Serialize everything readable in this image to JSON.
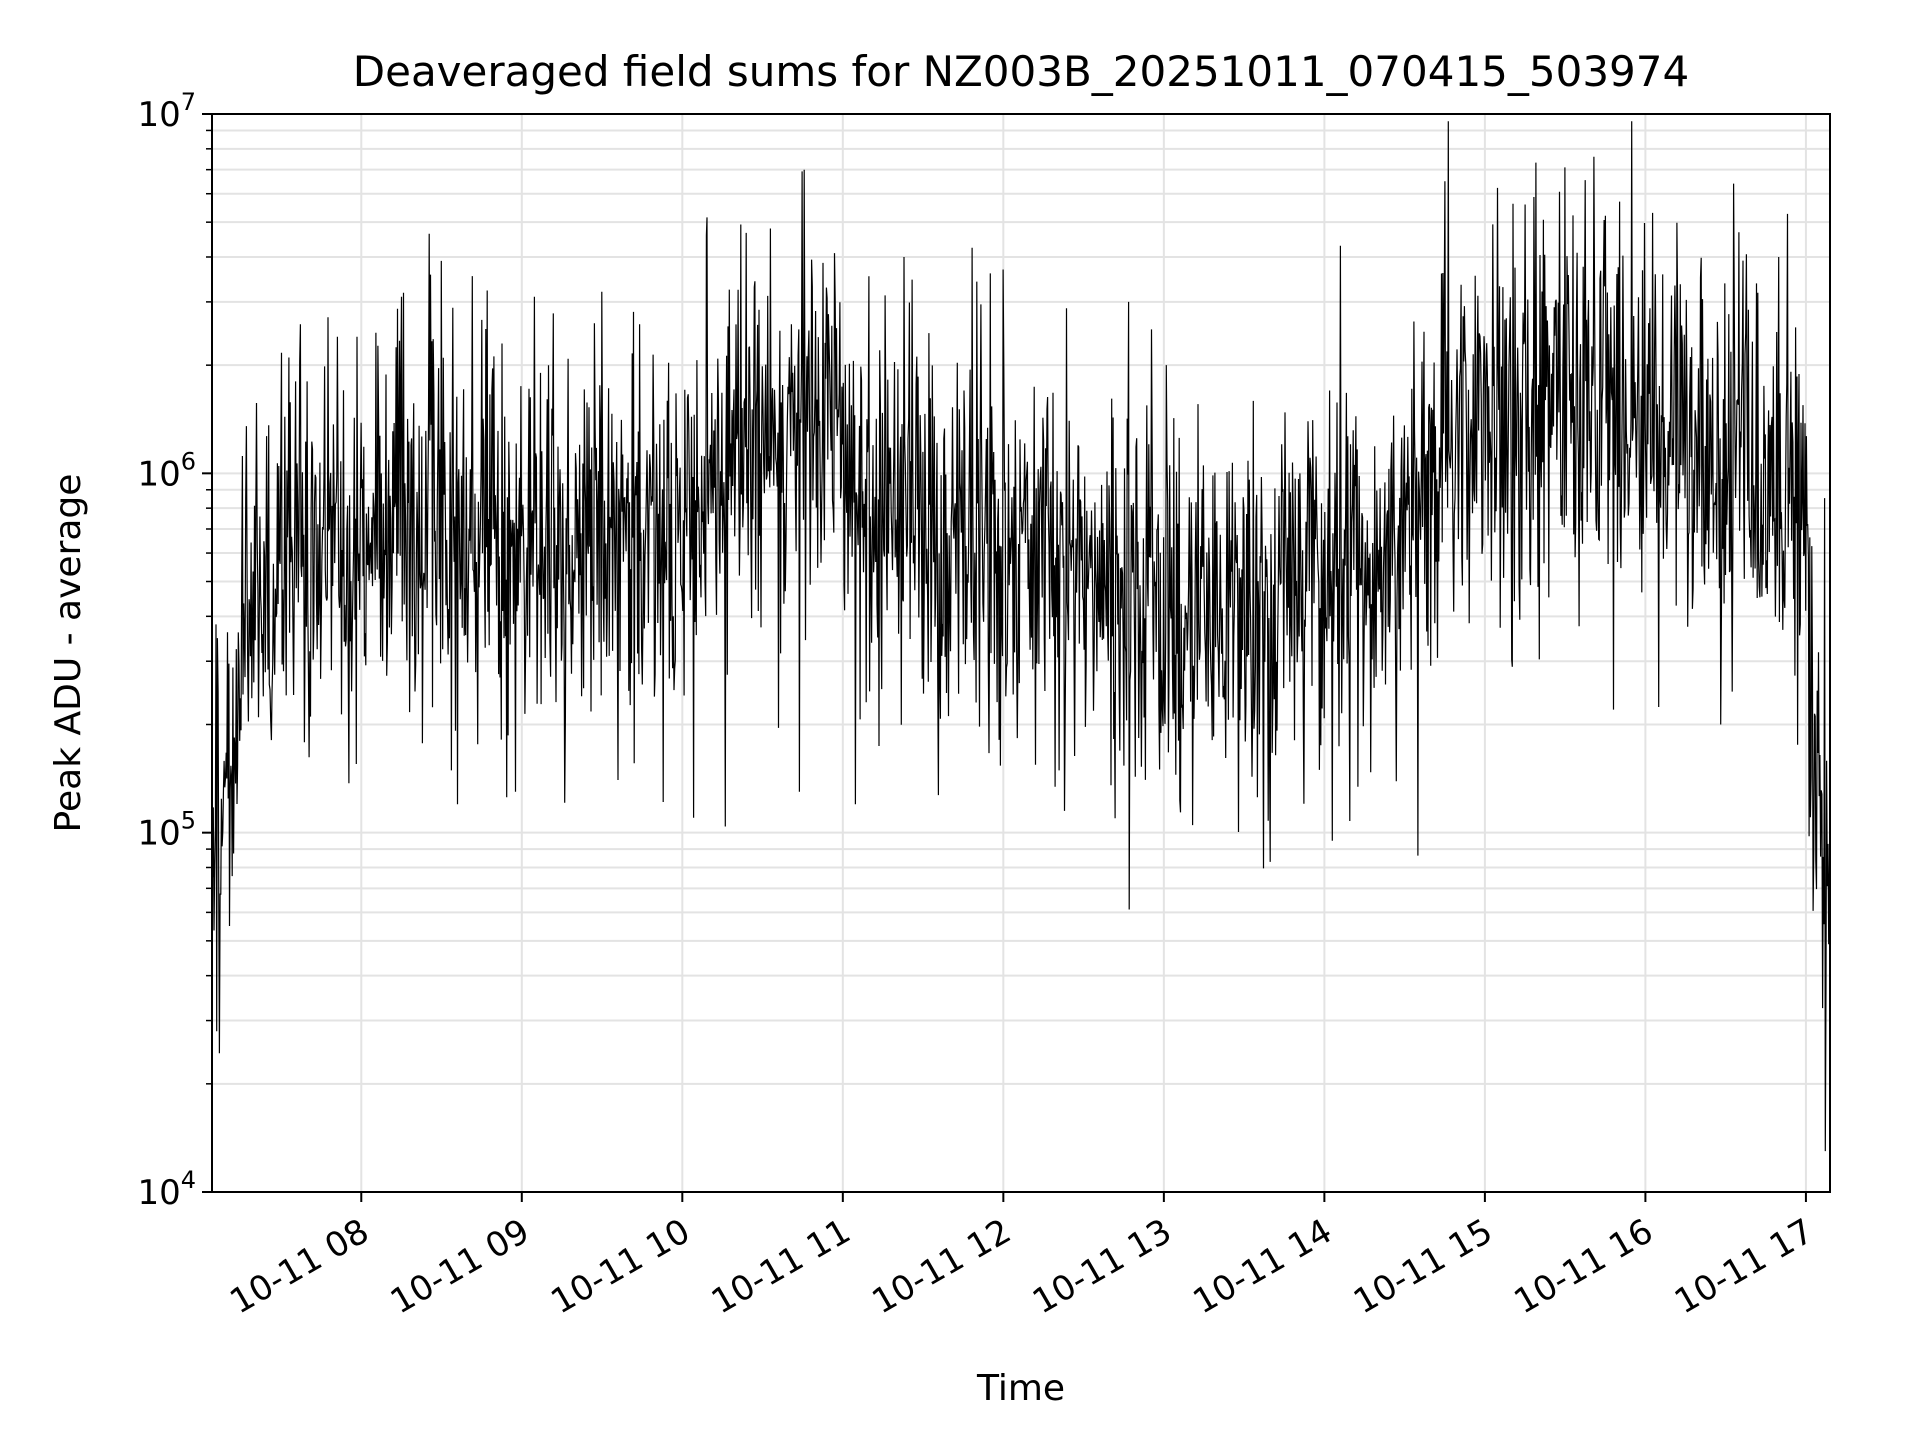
{
  "chart_data": {
    "type": "line",
    "title": "Deaveraged field sums for NZ003B_20251011_070415_503974",
    "xlabel": "Time",
    "ylabel": "Peak ADU - average",
    "yscale": "log",
    "ylim": [
      10000,
      10000000
    ],
    "xlim_hours": [
      7.07,
      17.15
    ],
    "grid": true,
    "line_color": "#000000",
    "grid_color": "#e3e3e3",
    "x_ticks": [
      {
        "hour": 8,
        "label": "10-11 08"
      },
      {
        "hour": 9,
        "label": "10-11 09"
      },
      {
        "hour": 10,
        "label": "10-11 10"
      },
      {
        "hour": 11,
        "label": "10-11 11"
      },
      {
        "hour": 12,
        "label": "10-11 12"
      },
      {
        "hour": 13,
        "label": "10-11 13"
      },
      {
        "hour": 14,
        "label": "10-11 14"
      },
      {
        "hour": 15,
        "label": "10-11 15"
      },
      {
        "hour": 16,
        "label": "10-11 16"
      },
      {
        "hour": 17,
        "label": "10-11 17"
      }
    ],
    "y_ticks": [
      {
        "value": 10000,
        "base": "10",
        "exp": "4"
      },
      {
        "value": 100000,
        "base": "10",
        "exp": "5"
      },
      {
        "value": 1000000,
        "base": "10",
        "exp": "6"
      },
      {
        "value": 10000000,
        "base": "10",
        "exp": "7"
      }
    ],
    "series": [
      {
        "name": "Peak ADU - average",
        "description": "Noisy per-frame values; trend points give the local median level, spread is the typical log10 scatter; spikes are notable extremes.",
        "trend": [
          {
            "t": 7.07,
            "v": 150000
          },
          {
            "t": 7.12,
            "v": 130000
          },
          {
            "t": 7.2,
            "v": 200000
          },
          {
            "t": 7.3,
            "v": 350000
          },
          {
            "t": 7.5,
            "v": 550000
          },
          {
            "t": 8.0,
            "v": 650000
          },
          {
            "t": 8.5,
            "v": 750000
          },
          {
            "t": 9.0,
            "v": 650000
          },
          {
            "t": 9.5,
            "v": 750000
          },
          {
            "t": 10.0,
            "v": 650000
          },
          {
            "t": 10.3,
            "v": 1100000
          },
          {
            "t": 10.8,
            "v": 1400000
          },
          {
            "t": 11.0,
            "v": 1200000
          },
          {
            "t": 11.2,
            "v": 750000
          },
          {
            "t": 11.5,
            "v": 800000
          },
          {
            "t": 12.0,
            "v": 650000
          },
          {
            "t": 12.5,
            "v": 500000
          },
          {
            "t": 13.0,
            "v": 420000
          },
          {
            "t": 13.5,
            "v": 450000
          },
          {
            "t": 14.0,
            "v": 500000
          },
          {
            "t": 14.4,
            "v": 600000
          },
          {
            "t": 14.7,
            "v": 1100000
          },
          {
            "t": 15.0,
            "v": 1300000
          },
          {
            "t": 15.5,
            "v": 1500000
          },
          {
            "t": 15.8,
            "v": 1800000
          },
          {
            "t": 16.2,
            "v": 1300000
          },
          {
            "t": 16.6,
            "v": 1100000
          },
          {
            "t": 17.0,
            "v": 900000
          },
          {
            "t": 17.02,
            "v": 400000
          },
          {
            "t": 17.05,
            "v": 130000
          },
          {
            "t": 17.1,
            "v": 90000
          },
          {
            "t": 17.15,
            "v": 70000
          }
        ],
        "spread_log10": 0.28,
        "spikes": [
          {
            "t": 7.1,
            "v": 28000
          },
          {
            "t": 7.18,
            "v": 55000
          },
          {
            "t": 7.55,
            "v": 2100000
          },
          {
            "t": 7.62,
            "v": 2600000
          },
          {
            "t": 7.85,
            "v": 2400000
          },
          {
            "t": 8.25,
            "v": 3100000
          },
          {
            "t": 8.5,
            "v": 3900000
          },
          {
            "t": 8.6,
            "v": 120000
          },
          {
            "t": 8.96,
            "v": 130000
          },
          {
            "t": 9.08,
            "v": 3100000
          },
          {
            "t": 9.5,
            "v": 3200000
          },
          {
            "t": 10.07,
            "v": 110000
          },
          {
            "t": 10.15,
            "v": 4600000
          },
          {
            "t": 10.55,
            "v": 4800000
          },
          {
            "t": 10.73,
            "v": 130000
          },
          {
            "t": 10.95,
            "v": 4100000
          },
          {
            "t": 11.08,
            "v": 120000
          },
          {
            "t": 11.38,
            "v": 4000000
          },
          {
            "t": 11.92,
            "v": 3600000
          },
          {
            "t": 12.38,
            "v": 115000
          },
          {
            "t": 12.78,
            "v": 3000000
          },
          {
            "t": 13.18,
            "v": 105000
          },
          {
            "t": 13.65,
            "v": 108000
          },
          {
            "t": 14.05,
            "v": 95000
          },
          {
            "t": 14.1,
            "v": 4300000
          },
          {
            "t": 14.75,
            "v": 6500000
          },
          {
            "t": 15.25,
            "v": 5600000
          },
          {
            "t": 15.5,
            "v": 7100000
          },
          {
            "t": 15.68,
            "v": 7600000
          },
          {
            "t": 15.8,
            "v": 220000
          },
          {
            "t": 16.47,
            "v": 200000
          },
          {
            "t": 16.55,
            "v": 6400000
          },
          {
            "t": 17.12,
            "v": 13000
          }
        ]
      }
    ]
  }
}
